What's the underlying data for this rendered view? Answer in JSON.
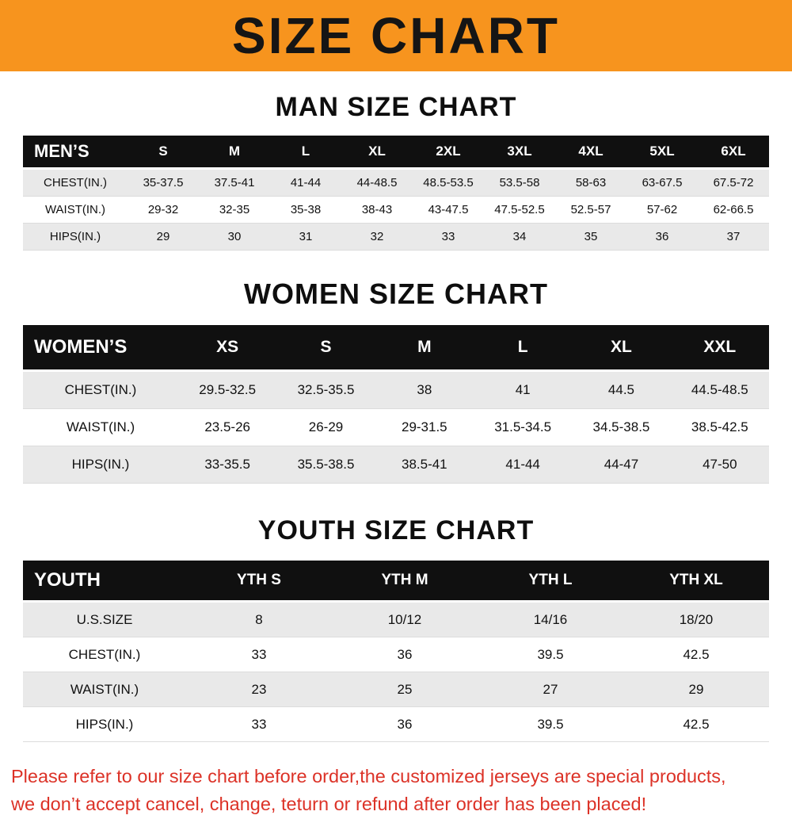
{
  "banner": {
    "title": "SIZE CHART"
  },
  "colors": {
    "banner_bg": "#f7941e",
    "table_header_bg": "#101010",
    "stripe_bg": "#e9e9e9",
    "footer_text": "#dc3227"
  },
  "sections": [
    {
      "heading": "MAN SIZE CHART",
      "table": {
        "header": [
          "MEN’S",
          "S",
          "M",
          "L",
          "XL",
          "2XL",
          "3XL",
          "4XL",
          "5XL",
          "6XL"
        ],
        "rows": [
          {
            "label": "CHEST(IN.)",
            "values": [
              "35-37.5",
              "37.5-41",
              "41-44",
              "44-48.5",
              "48.5-53.5",
              "53.5-58",
              "58-63",
              "63-67.5",
              "67.5-72"
            ]
          },
          {
            "label": "WAIST(IN.)",
            "values": [
              "29-32",
              "32-35",
              "35-38",
              "38-43",
              "43-47.5",
              "47.5-52.5",
              "52.5-57",
              "57-62",
              "62-66.5"
            ]
          },
          {
            "label": "HIPS(IN.)",
            "values": [
              "29",
              "30",
              "31",
              "32",
              "33",
              "34",
              "35",
              "36",
              "37"
            ]
          }
        ]
      }
    },
    {
      "heading": "WOMEN SIZE CHART",
      "table": {
        "header": [
          "WOMEN’S",
          "XS",
          "S",
          "M",
          "L",
          "XL",
          "XXL"
        ],
        "rows": [
          {
            "label": "CHEST(IN.)",
            "values": [
              "29.5-32.5",
              "32.5-35.5",
              "38",
              "41",
              "44.5",
              "44.5-48.5"
            ]
          },
          {
            "label": "WAIST(IN.)",
            "values": [
              "23.5-26",
              "26-29",
              "29-31.5",
              "31.5-34.5",
              "34.5-38.5",
              "38.5-42.5"
            ]
          },
          {
            "label": "HIPS(IN.)",
            "values": [
              "33-35.5",
              "35.5-38.5",
              "38.5-41",
              "41-44",
              "44-47",
              "47-50"
            ]
          }
        ]
      }
    },
    {
      "heading": "YOUTH SIZE CHART",
      "table": {
        "header": [
          "YOUTH",
          "YTH S",
          "YTH M",
          "YTH L",
          "YTH XL"
        ],
        "rows": [
          {
            "label": "U.S.SIZE",
            "values": [
              "8",
              "10/12",
              "14/16",
              "18/20"
            ]
          },
          {
            "label": "CHEST(IN.)",
            "values": [
              "33",
              "36",
              "39.5",
              "42.5"
            ]
          },
          {
            "label": "WAIST(IN.)",
            "values": [
              "23",
              "25",
              "27",
              "29"
            ]
          },
          {
            "label": "HIPS(IN.)",
            "values": [
              "33",
              "36",
              "39.5",
              "42.5"
            ]
          }
        ]
      }
    }
  ],
  "footer": {
    "lines": [
      "Please refer to our size chart before order,the customized jerseys are special products,",
      "we don’t accept cancel, change, teturn or refund after order has been placed!"
    ]
  }
}
